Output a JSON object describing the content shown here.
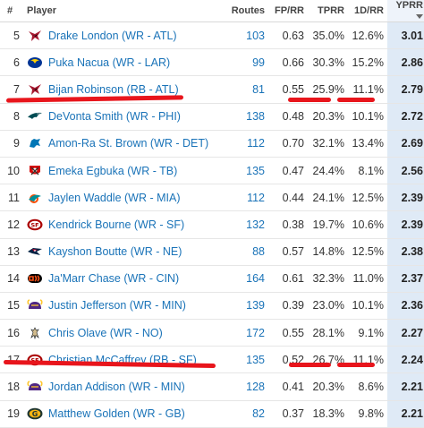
{
  "table": {
    "headers": {
      "rank": "#",
      "player": "Player",
      "routes": "Routes",
      "fp_rr": "FP/RR",
      "tprr": "TPRR",
      "first_down_rr": "1D/RR",
      "yprr": "YPRR"
    },
    "sort": {
      "column": "yprr",
      "direction": "descending"
    },
    "rows": [
      {
        "rank": "5",
        "player": "Drake London (WR - ATL)",
        "team_logo": "falcons-icon",
        "routes": "103",
        "fp_rr": "0.63",
        "tprr": "35.0%",
        "first_down_rr": "12.6%",
        "yprr": "3.01"
      },
      {
        "rank": "6",
        "player": "Puka Nacua (WR - LAR)",
        "team_logo": "rams-icon",
        "routes": "99",
        "fp_rr": "0.66",
        "tprr": "30.3%",
        "first_down_rr": "15.2%",
        "yprr": "2.86"
      },
      {
        "rank": "7",
        "player": "Bijan Robinson (RB - ATL)",
        "team_logo": "falcons-icon",
        "routes": "81",
        "fp_rr": "0.55",
        "tprr": "25.9%",
        "first_down_rr": "11.1%",
        "yprr": "2.79"
      },
      {
        "rank": "8",
        "player": "DeVonta Smith (WR - PHI)",
        "team_logo": "eagles-icon",
        "routes": "138",
        "fp_rr": "0.48",
        "tprr": "20.3%",
        "first_down_rr": "10.1%",
        "yprr": "2.72"
      },
      {
        "rank": "9",
        "player": "Amon-Ra St. Brown (WR - DET)",
        "team_logo": "lions-icon",
        "routes": "112",
        "fp_rr": "0.70",
        "tprr": "32.1%",
        "first_down_rr": "13.4%",
        "yprr": "2.69"
      },
      {
        "rank": "10",
        "player": "Emeka Egbuka (WR - TB)",
        "team_logo": "buccaneers-icon",
        "routes": "135",
        "fp_rr": "0.47",
        "tprr": "24.4%",
        "first_down_rr": "8.1%",
        "yprr": "2.56"
      },
      {
        "rank": "11",
        "player": "Jaylen Waddle (WR - MIA)",
        "team_logo": "dolphins-icon",
        "routes": "112",
        "fp_rr": "0.44",
        "tprr": "24.1%",
        "first_down_rr": "12.5%",
        "yprr": "2.39"
      },
      {
        "rank": "12",
        "player": "Kendrick Bourne (WR - SF)",
        "team_logo": "49ers-icon",
        "routes": "132",
        "fp_rr": "0.38",
        "tprr": "19.7%",
        "first_down_rr": "10.6%",
        "yprr": "2.39"
      },
      {
        "rank": "13",
        "player": "Kayshon Boutte (WR - NE)",
        "team_logo": "patriots-icon",
        "routes": "88",
        "fp_rr": "0.57",
        "tprr": "14.8%",
        "first_down_rr": "12.5%",
        "yprr": "2.38"
      },
      {
        "rank": "14",
        "player": "Ja'Marr Chase (WR - CIN)",
        "team_logo": "bengals-icon",
        "routes": "164",
        "fp_rr": "0.61",
        "tprr": "32.3%",
        "first_down_rr": "11.0%",
        "yprr": "2.37"
      },
      {
        "rank": "15",
        "player": "Justin Jefferson (WR - MIN)",
        "team_logo": "vikings-icon",
        "routes": "139",
        "fp_rr": "0.39",
        "tprr": "23.0%",
        "first_down_rr": "10.1%",
        "yprr": "2.36"
      },
      {
        "rank": "16",
        "player": "Chris Olave (WR - NO)",
        "team_logo": "saints-icon",
        "routes": "172",
        "fp_rr": "0.55",
        "tprr": "28.1%",
        "first_down_rr": "9.1%",
        "yprr": "2.27"
      },
      {
        "rank": "17",
        "player": "Christian McCaffrey (RB - SF)",
        "team_logo": "49ers-icon",
        "routes": "135",
        "fp_rr": "0.52",
        "tprr": "26.7%",
        "first_down_rr": "11.1%",
        "yprr": "2.24"
      },
      {
        "rank": "18",
        "player": "Jordan Addison (WR - MIN)",
        "team_logo": "vikings-icon",
        "routes": "128",
        "fp_rr": "0.41",
        "tprr": "20.3%",
        "first_down_rr": "8.6%",
        "yprr": "2.21"
      },
      {
        "rank": "19",
        "player": "Matthew Golden (WR - GB)",
        "team_logo": "packers-icon",
        "routes": "82",
        "fp_rr": "0.37",
        "tprr": "18.3%",
        "first_down_rr": "9.8%",
        "yprr": "2.21"
      }
    ]
  },
  "annotations": {
    "color": "#e8151c",
    "underlined_players": [
      "Bijan Robinson (RB - ATL)",
      "Christian McCaffrey (RB - SF)"
    ],
    "underlined_stats": [
      "tprr",
      "first_down_rr"
    ]
  },
  "colors": {
    "link": "#1a73b8",
    "yprr_column_bg": "#dfeaf6",
    "falcons": "#a71930",
    "rams": "#003594",
    "eagles": "#004c54",
    "lions": "#0076b6",
    "buccaneers": "#d50a0a",
    "dolphins": "#008e97",
    "49ers": "#aa0000",
    "patriots": "#002244",
    "bengals": "#fb4f14",
    "vikings": "#4f2683",
    "saints": "#d3bc8d",
    "packers": "#203731"
  }
}
